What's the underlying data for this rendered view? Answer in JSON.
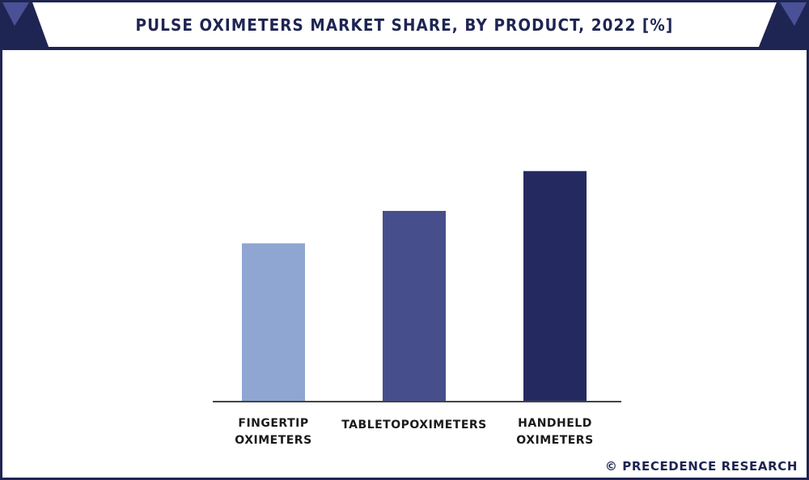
{
  "header": {
    "title": "PULSE OXIMETERS MARKET SHARE, BY PRODUCT, 2022 [%]"
  },
  "footer": {
    "credit": "© PRECEDENCE RESEARCH"
  },
  "colors": {
    "frame": "#1f2552",
    "header_plate": "#ffffff",
    "accent_triangle": "#4a5196",
    "axis": "#444444"
  },
  "chart_data": {
    "type": "bar",
    "title": "PULSE OXIMETERS MARKET SHARE, BY PRODUCT, 2022 [%]",
    "categories": [
      "FINGERTIP OXIMETERS",
      "TABLETOPOXIMETERS",
      "HANDHELD OXIMETERS"
    ],
    "category_lines": [
      [
        "FINGERTIP",
        "OXIMETERS"
      ],
      [
        "TABLETOPOXIMETERS"
      ],
      [
        "HANDHELD",
        "OXIMETERS"
      ]
    ],
    "values": [
      27.8,
      33.5,
      40.5
    ],
    "bar_colors": [
      "#8fa6d3",
      "#464f8b",
      "#242a60"
    ],
    "ylim": [
      0,
      45
    ],
    "xlabel": "",
    "ylabel": "",
    "grid": false,
    "legend": "none"
  }
}
